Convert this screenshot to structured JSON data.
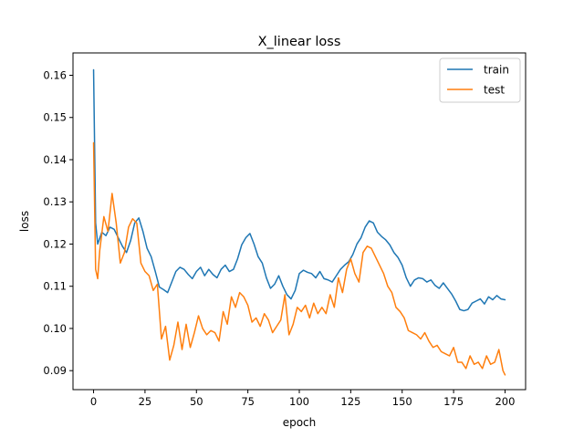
{
  "chart_data": {
    "type": "line",
    "title": "X_linear loss",
    "xlabel": "epoch",
    "ylabel": "loss",
    "xlim": [
      -10,
      210
    ],
    "ylim": [
      0.0855,
      0.1653
    ],
    "xticks": [
      0,
      25,
      50,
      75,
      100,
      125,
      150,
      175,
      200
    ],
    "yticks": [
      0.09,
      0.1,
      0.11,
      0.12,
      0.13,
      0.14,
      0.15,
      0.16
    ],
    "ytick_labels": [
      "0.09",
      "0.10",
      "0.11",
      "0.12",
      "0.13",
      "0.14",
      "0.15",
      "0.16"
    ],
    "grid": false,
    "legend_position": "upper-right",
    "series": [
      {
        "name": "train",
        "color": "#1f77b4",
        "x": [
          0,
          1,
          2,
          4,
          6,
          8,
          10,
          12,
          14,
          16,
          18,
          20,
          22,
          24,
          26,
          28,
          30,
          32,
          34,
          36,
          38,
          40,
          42,
          44,
          46,
          48,
          50,
          52,
          54,
          56,
          58,
          60,
          62,
          64,
          66,
          68,
          70,
          72,
          74,
          76,
          78,
          80,
          82,
          84,
          86,
          88,
          90,
          92,
          94,
          96,
          98,
          100,
          102,
          104,
          106,
          108,
          110,
          112,
          114,
          116,
          118,
          120,
          122,
          124,
          126,
          128,
          130,
          132,
          134,
          136,
          138,
          140,
          142,
          144,
          146,
          148,
          150,
          152,
          154,
          156,
          158,
          160,
          162,
          164,
          166,
          168,
          170,
          172,
          174,
          176,
          178,
          180,
          182,
          184,
          186,
          188,
          190,
          192,
          194,
          196,
          198,
          200
        ],
        "values": [
          0.1613,
          0.125,
          0.12,
          0.1228,
          0.122,
          0.124,
          0.1235,
          0.1215,
          0.1195,
          0.118,
          0.1208,
          0.125,
          0.1262,
          0.123,
          0.119,
          0.117,
          0.1135,
          0.1098,
          0.1092,
          0.1085,
          0.111,
          0.1135,
          0.1145,
          0.114,
          0.1128,
          0.1118,
          0.1135,
          0.1145,
          0.1125,
          0.114,
          0.1128,
          0.112,
          0.114,
          0.115,
          0.1135,
          0.114,
          0.1165,
          0.1198,
          0.1215,
          0.1225,
          0.12,
          0.117,
          0.1155,
          0.112,
          0.1095,
          0.1105,
          0.1125,
          0.11,
          0.108,
          0.107,
          0.109,
          0.113,
          0.1138,
          0.1133,
          0.113,
          0.112,
          0.1135,
          0.1118,
          0.1115,
          0.111,
          0.1125,
          0.114,
          0.115,
          0.1158,
          0.1175,
          0.12,
          0.1215,
          0.124,
          0.1255,
          0.125,
          0.1228,
          0.1218,
          0.121,
          0.1198,
          0.118,
          0.1168,
          0.115,
          0.112,
          0.11,
          0.1115,
          0.112,
          0.1118,
          0.111,
          0.1115,
          0.1102,
          0.1095,
          0.1108,
          0.1095,
          0.1082,
          0.1065,
          0.1045,
          0.1042,
          0.1045,
          0.106,
          0.1065,
          0.107,
          0.1058,
          0.1075,
          0.1068,
          0.1078,
          0.107,
          0.1068
        ]
      },
      {
        "name": "test",
        "color": "#ff7f0e",
        "x": [
          0,
          1,
          2,
          3,
          5,
          7,
          9,
          11,
          13,
          15,
          17,
          19,
          21,
          23,
          25,
          27,
          29,
          31,
          33,
          35,
          37,
          39,
          41,
          43,
          45,
          47,
          49,
          51,
          53,
          55,
          57,
          59,
          61,
          63,
          65,
          67,
          69,
          71,
          73,
          75,
          77,
          79,
          81,
          83,
          85,
          87,
          89,
          91,
          93,
          95,
          97,
          99,
          101,
          103,
          105,
          107,
          109,
          111,
          113,
          115,
          117,
          119,
          121,
          123,
          125,
          127,
          129,
          131,
          133,
          135,
          137,
          139,
          141,
          143,
          145,
          147,
          149,
          151,
          153,
          155,
          157,
          159,
          161,
          163,
          165,
          167,
          169,
          171,
          173,
          175,
          177,
          179,
          181,
          183,
          185,
          187,
          189,
          191,
          193,
          195,
          197,
          199,
          200
        ],
        "values": [
          0.144,
          0.114,
          0.1118,
          0.1185,
          0.1265,
          0.123,
          0.132,
          0.125,
          0.1155,
          0.118,
          0.124,
          0.126,
          0.125,
          0.1155,
          0.1135,
          0.1125,
          0.109,
          0.1105,
          0.0975,
          0.1005,
          0.0925,
          0.096,
          0.1015,
          0.095,
          0.101,
          0.0955,
          0.099,
          0.103,
          0.1,
          0.0985,
          0.0995,
          0.099,
          0.097,
          0.104,
          0.101,
          0.1075,
          0.105,
          0.1085,
          0.1075,
          0.1055,
          0.1015,
          0.1025,
          0.1005,
          0.1035,
          0.102,
          0.099,
          0.1005,
          0.102,
          0.108,
          0.0985,
          0.101,
          0.105,
          0.104,
          0.1055,
          0.1025,
          0.106,
          0.1035,
          0.105,
          0.1035,
          0.108,
          0.105,
          0.112,
          0.1085,
          0.114,
          0.1165,
          0.113,
          0.111,
          0.118,
          0.1195,
          0.119,
          0.117,
          0.115,
          0.113,
          0.11,
          0.1085,
          0.105,
          0.104,
          0.1025,
          0.0995,
          0.099,
          0.0985,
          0.0975,
          0.099,
          0.097,
          0.0955,
          0.096,
          0.0945,
          0.094,
          0.0935,
          0.0955,
          0.092,
          0.092,
          0.0905,
          0.0935,
          0.0915,
          0.092,
          0.0905,
          0.0935,
          0.0915,
          0.092,
          0.095,
          0.09,
          0.089
        ]
      }
    ]
  }
}
